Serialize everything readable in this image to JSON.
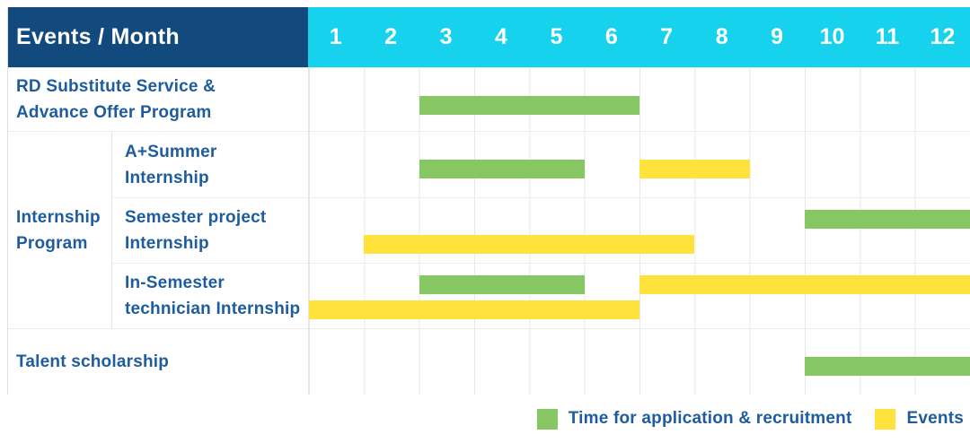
{
  "title": "Events / Month",
  "months": [
    "1",
    "2",
    "3",
    "4",
    "5",
    "6",
    "7",
    "8",
    "9",
    "10",
    "11",
    "12"
  ],
  "group_label_lines": [
    "Internship",
    "Program"
  ],
  "colors": {
    "header_navy": "#134A7D",
    "header_cyan": "#17D2EC",
    "bar_green": "#86C663",
    "bar_yellow": "#FFE33C",
    "label_blue": "#1E5C9E",
    "grid_line": "#E7E7E7",
    "row_line": "#ECECEC"
  },
  "legend": [
    {
      "series": "Time for application & recruitment",
      "color": "#86C663"
    },
    {
      "series": "Events",
      "color": "#FFE33C"
    }
  ],
  "chart_data": {
    "type": "bar",
    "subtype": "gantt-timeline",
    "title": "Events / Month",
    "xlabel": "Month",
    "x_ticks": [
      1,
      2,
      3,
      4,
      5,
      6,
      7,
      8,
      9,
      10,
      11,
      12
    ],
    "xlim": [
      1,
      12
    ],
    "grid": true,
    "legend_position": "bottom-right",
    "series": [
      {
        "name": "Time for application & recruitment",
        "color": "#86C663"
      },
      {
        "name": "Events",
        "color": "#FFE33C"
      }
    ],
    "rows": [
      {
        "group": "",
        "label": "RD Substitute Service & Advance Offer Program",
        "label_lines": [
          "RD Substitute Service &",
          "Advance Offer Program"
        ],
        "intervals": [
          {
            "series": "Time for application & recruitment",
            "months": [
              3,
              6
            ],
            "lane": "single"
          }
        ]
      },
      {
        "group": "Internship Program",
        "label": "A+Summer Internship",
        "label_lines": [
          "A+Summer",
          "Internship"
        ],
        "intervals": [
          {
            "series": "Time for application & recruitment",
            "months": [
              3,
              5
            ],
            "lane": "single"
          },
          {
            "series": "Events",
            "months": [
              7,
              8
            ],
            "lane": "single"
          }
        ]
      },
      {
        "group": "Internship Program",
        "label": "Semester project Internship",
        "label_lines": [
          "Semester project",
          "Internship"
        ],
        "intervals": [
          {
            "series": "Time for application & recruitment",
            "months": [
              10,
              12
            ],
            "lane": "top"
          },
          {
            "series": "Events",
            "months": [
              2,
              7
            ],
            "lane": "bottom"
          }
        ]
      },
      {
        "group": "Internship Program",
        "label": "In-Semester technician Internship",
        "label_lines": [
          "In-Semester",
          "technician Internship"
        ],
        "intervals": [
          {
            "series": "Time for application & recruitment",
            "months": [
              3,
              5
            ],
            "lane": "top"
          },
          {
            "series": "Events",
            "months": [
              7,
              12
            ],
            "lane": "top"
          },
          {
            "series": "Events",
            "months": [
              1,
              6
            ],
            "lane": "bottom"
          }
        ]
      },
      {
        "group": "",
        "label": "Talent scholarship",
        "label_lines": [
          "Talent scholarship"
        ],
        "intervals": [
          {
            "series": "Time for application & recruitment",
            "months": [
              10,
              12
            ],
            "lane": "single"
          }
        ]
      }
    ]
  }
}
